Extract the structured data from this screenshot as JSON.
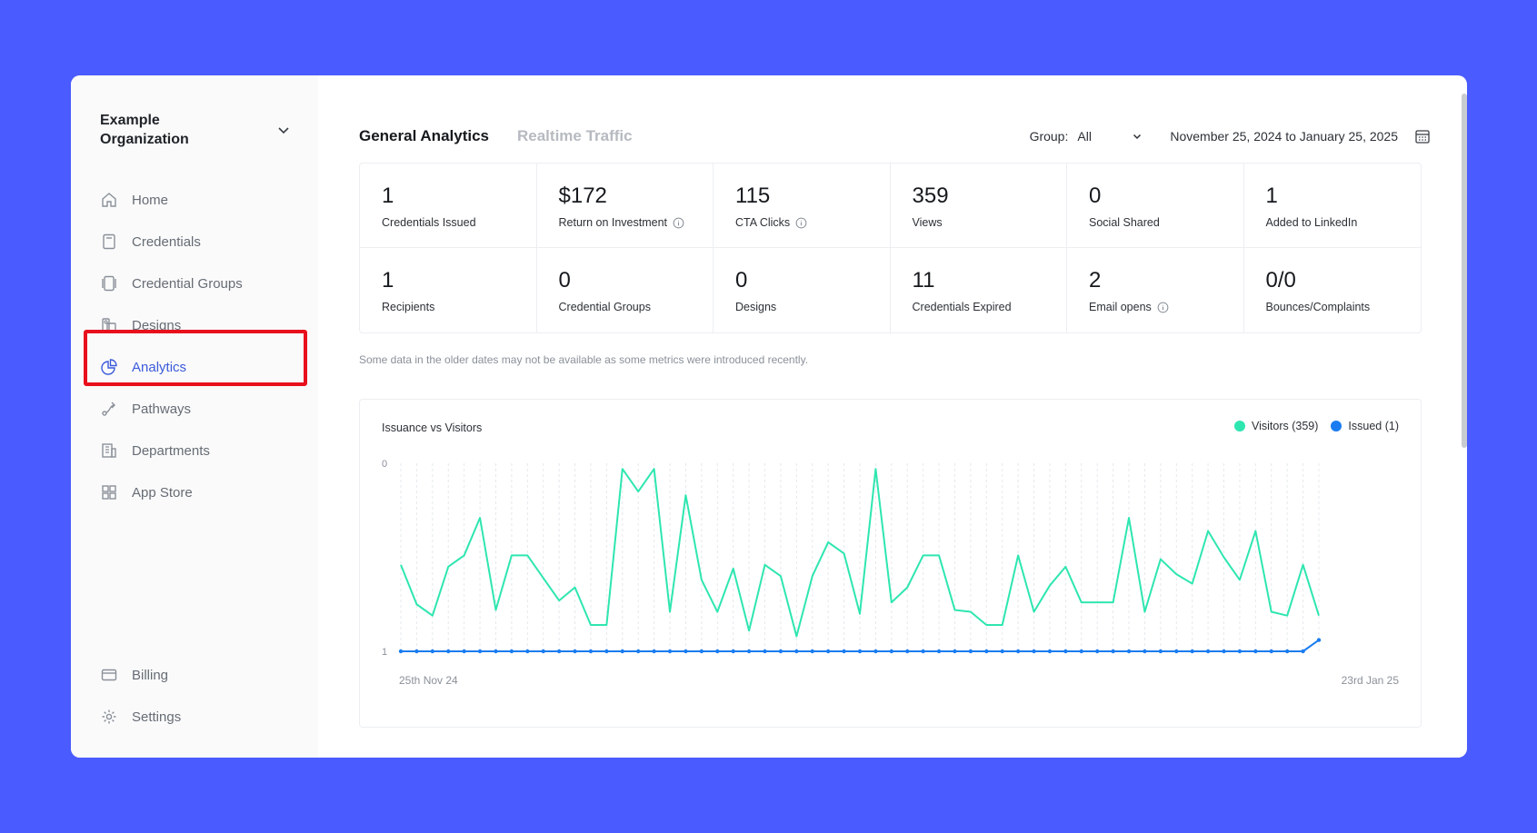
{
  "org": {
    "name": "Example Organization"
  },
  "sidebar": {
    "items": [
      {
        "label": "Home",
        "icon": "home-icon"
      },
      {
        "label": "Credentials",
        "icon": "credential-icon"
      },
      {
        "label": "Credential Groups",
        "icon": "credential-groups-icon"
      },
      {
        "label": "Designs",
        "icon": "designs-icon"
      },
      {
        "label": "Analytics",
        "icon": "analytics-icon"
      },
      {
        "label": "Pathways",
        "icon": "pathways-icon"
      },
      {
        "label": "Departments",
        "icon": "departments-icon"
      },
      {
        "label": "App Store",
        "icon": "app-store-icon"
      }
    ],
    "bottom": [
      {
        "label": "Billing",
        "icon": "billing-icon"
      },
      {
        "label": "Settings",
        "icon": "gear-icon"
      }
    ],
    "active": "Analytics"
  },
  "header": {
    "tabs": [
      {
        "label": "General Analytics"
      },
      {
        "label": "Realtime Traffic"
      }
    ],
    "group_label": "Group:",
    "group_value": "All",
    "date_range": "November 25, 2024 to January 25, 2025"
  },
  "stats": [
    {
      "value": "1",
      "label": "Credentials Issued"
    },
    {
      "value": "$172",
      "label": "Return on Investment"
    },
    {
      "value": "115",
      "label": "CTA Clicks"
    },
    {
      "value": "359",
      "label": "Views"
    },
    {
      "value": "0",
      "label": "Social Shared"
    },
    {
      "value": "1",
      "label": "Added to LinkedIn"
    },
    {
      "value": "1",
      "label": "Recipients"
    },
    {
      "value": "0",
      "label": "Credential Groups"
    },
    {
      "value": "0",
      "label": "Designs"
    },
    {
      "value": "11",
      "label": "Credentials Expired"
    },
    {
      "value": "2",
      "label": "Email opens"
    },
    {
      "value": "0/0",
      "label": "Bounces/Complaints"
    }
  ],
  "note": "Some data in the older dates may not be available as some metrics were introduced recently.",
  "colors": {
    "accent": "#3b5bdb",
    "visitors": "#2ee6b0",
    "issued": "#1a7cf0",
    "highlight": "#e8101c",
    "background": "#4a5bff"
  },
  "chart_data": {
    "type": "line",
    "title": "Issuance vs Visitors",
    "x_start_label": "25th Nov 24",
    "x_end_label": "23rd Jan 25",
    "y_ticks": [
      "0",
      "1"
    ],
    "series": [
      {
        "name": "Visitors (359)",
        "values": [
          0.54,
          0.75,
          0.81,
          0.55,
          0.49,
          0.29,
          0.78,
          0.49,
          0.49,
          0.61,
          0.73,
          0.66,
          0.86,
          0.86,
          0.03,
          0.15,
          0.03,
          0.79,
          0.17,
          0.62,
          0.79,
          0.56,
          0.89,
          0.54,
          0.6,
          0.92,
          0.6,
          0.42,
          0.48,
          0.8,
          0.03,
          0.74,
          0.66,
          0.49,
          0.49,
          0.78,
          0.79,
          0.86,
          0.86,
          0.49,
          0.79,
          0.65,
          0.55,
          0.74,
          0.74,
          0.74,
          0.29,
          0.79,
          0.51,
          0.59,
          0.64,
          0.36,
          0.5,
          0.62,
          0.36,
          0.79,
          0.81,
          0.54,
          0.81
        ]
      },
      {
        "name": "Issued (1)",
        "values": [
          1,
          1,
          1,
          1,
          1,
          1,
          1,
          1,
          1,
          1,
          1,
          1,
          1,
          1,
          1,
          1,
          1,
          1,
          1,
          1,
          1,
          1,
          1,
          1,
          1,
          1,
          1,
          1,
          1,
          1,
          1,
          1,
          1,
          1,
          1,
          1,
          1,
          1,
          1,
          1,
          1,
          1,
          1,
          1,
          1,
          1,
          1,
          1,
          1,
          1,
          1,
          1,
          1,
          1,
          1,
          1,
          1,
          1,
          0.94
        ]
      }
    ]
  }
}
